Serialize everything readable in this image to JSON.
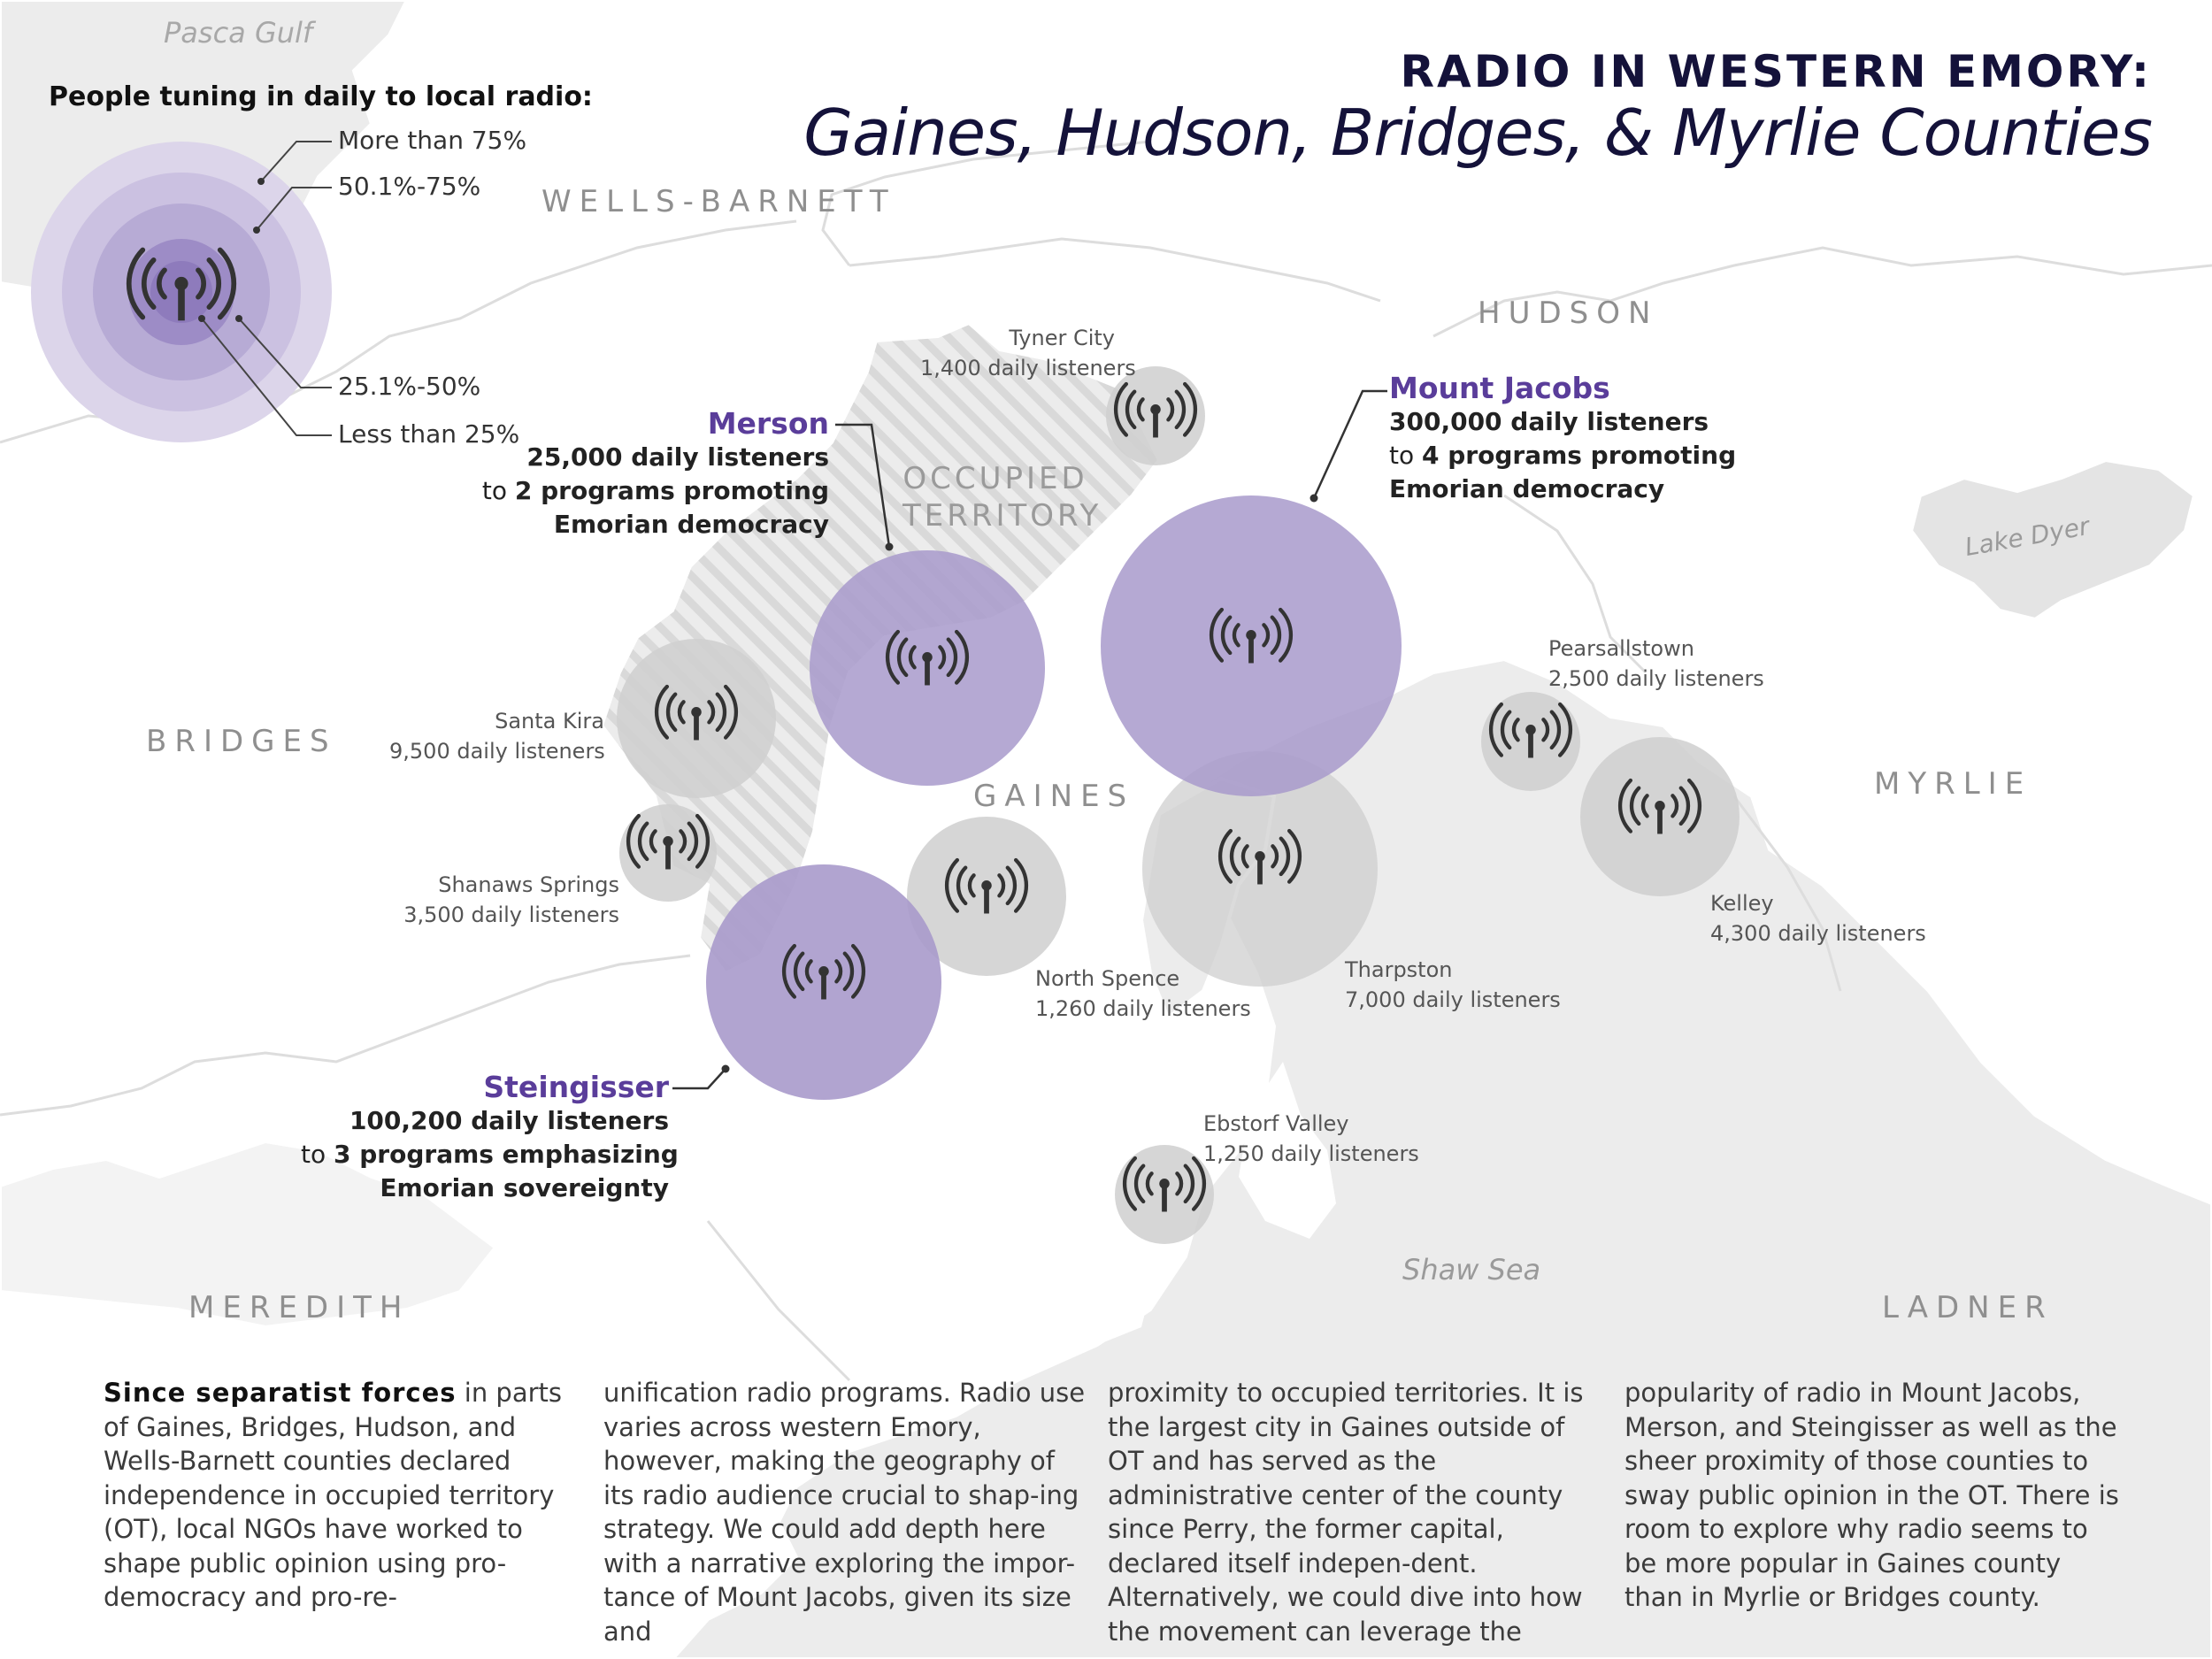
{
  "title": {
    "line1": "RADIO IN WESTERN EMORY:",
    "line2": "Gaines, Hudson, Bridges, & Myrlie Counties"
  },
  "legend": {
    "title": "People tuning in daily to local radio:",
    "items": [
      "More than 75%",
      "50.1%-75%",
      "25.1%-50%",
      "Less than 25%"
    ]
  },
  "colors": {
    "purple_circle": "#a89acb",
    "purple_text": "#5a3d9a",
    "gray_circle": "#d5d5d5",
    "land": "#ececec",
    "title_ink": "#14123a"
  },
  "regions": [
    "WELLS-BARNETT",
    "HUDSON",
    "BRIDGES",
    "GAINES",
    "MYRLIE",
    "MEREDITH",
    "LADNER"
  ],
  "occupied_territory": "OCCUPIED TERRITORY",
  "water": [
    "Pasca Gulf",
    "Lake Dyer",
    "Shaw Sea"
  ],
  "cities": [
    {
      "name": "Tyner City",
      "listeners": "1,400 daily listeners"
    },
    {
      "name": "Santa Kira",
      "listeners": "9,500 daily listeners"
    },
    {
      "name": "Shanaws Springs",
      "listeners": "3,500 daily listeners"
    },
    {
      "name": "North Spence",
      "listeners": "1,260 daily listeners"
    },
    {
      "name": "Tharpston",
      "listeners": "7,000 daily listeners"
    },
    {
      "name": "Pearsallstown",
      "listeners": "2,500 daily listeners"
    },
    {
      "name": "Kelley",
      "listeners": "4,300 daily listeners"
    },
    {
      "name": "Ebstorf Valley",
      "listeners": "1,250 daily listeners"
    }
  ],
  "callouts": {
    "merson": {
      "name": "Merson",
      "count": "25,000",
      "l1_rest": " daily listeners",
      "l2_pre": "to ",
      "l2_num": "2",
      "l2_rest": " programs promoting",
      "l3": "Emorian democracy"
    },
    "mount_jacobs": {
      "name": "Mount Jacobs",
      "count": "300,000",
      "l1_rest": " daily listeners",
      "l2_pre": "to ",
      "l2_num": "4",
      "l2_rest": " programs promoting",
      "l3": "Emorian democracy"
    },
    "steingisser": {
      "name": "Steingisser",
      "count": "100,200",
      "l1_rest": " daily listeners",
      "l2_pre": "to ",
      "l2_num": "3",
      "l2_rest": " programs emphasizing",
      "l3": "Emorian sovereignty"
    }
  },
  "body": {
    "lead": "Since separatist forces",
    "col1": " in parts of Gaines, Bridges, Hudson, and Wells-Barnett counties declared independence in occupied territory (OT), local NGOs have worked to shape public opinion using pro-democracy and pro-re-",
    "col2": "unification radio programs. Radio use varies across western Emory, however, making the geography of its radio audience crucial to shap-ing strategy. We could add depth here with a narrative exploring the impor-tance of Mount Jacobs, given its size and",
    "col3": "proximity to occupied territories. It is the largest city in Gaines outside of OT and has served as the administrative center of the county since Perry, the former capital, declared itself indepen-dent. Alternatively, we could dive into how the movement can leverage the",
    "col4": "popularity of radio in Mount Jacobs, Merson, and Steingisser as well as the sheer proximity of those counties to sway public opinion in the OT. There is room to explore why radio seems to be more popular in Gaines county than in Myrlie or Bridges county."
  }
}
